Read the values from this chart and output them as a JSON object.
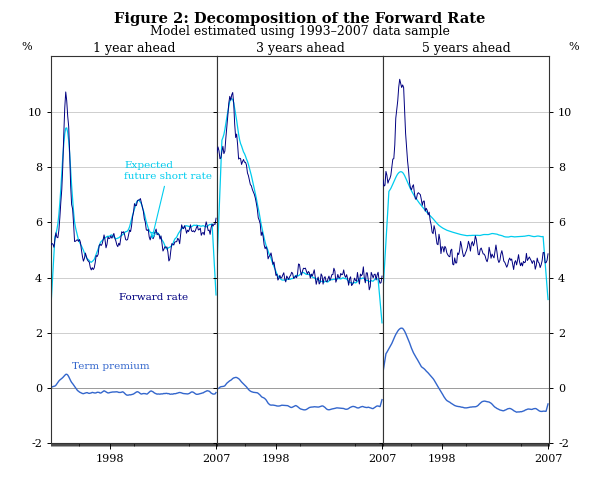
{
  "title": "Figure 2: Decomposition of the Forward Rate",
  "subtitle": "Model estimated using 1993–2007 data sample",
  "panel_titles": [
    "1 year ahead",
    "3 years ahead",
    "5 years ahead"
  ],
  "ylabel_left": "%",
  "ylabel_right": "%",
  "ylim": [
    -2,
    12
  ],
  "yticks": [
    -2,
    0,
    2,
    4,
    6,
    8,
    10
  ],
  "xtick_labeled": [
    1998,
    2007
  ],
  "color_forward": "#000080",
  "color_expected": "#00CCEE",
  "color_premium": "#3366CC",
  "bg_color": "#FFFFFF",
  "grid_color": "#BBBBBB",
  "spine_color": "#555555",
  "lw_main": 0.7,
  "lw_expected": 0.9,
  "lw_premium": 1.0
}
